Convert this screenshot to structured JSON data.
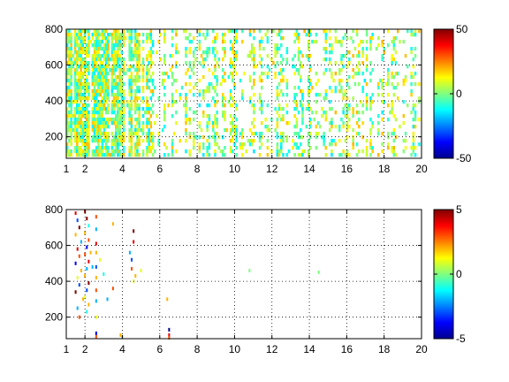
{
  "chart_data": [
    {
      "type": "heatmap",
      "title": "",
      "xlabel": "",
      "ylabel": "",
      "xlim": [
        1,
        20
      ],
      "ylim": [
        80,
        800
      ],
      "grid": true,
      "x_ticks": [
        "1",
        "2",
        "4",
        "6",
        "8",
        "10",
        "12",
        "14",
        "16",
        "18",
        "20"
      ],
      "y_ticks": [
        "200",
        "400",
        "600",
        "800"
      ],
      "colorbar": {
        "ticks": [
          "50",
          "0",
          "-50"
        ],
        "clim": [
          -50,
          50
        ],
        "colormap": "jet"
      },
      "density": [
        [
          1.5,
          0.85
        ],
        [
          2.0,
          0.8
        ],
        [
          2.5,
          0.85
        ],
        [
          3.0,
          0.8
        ],
        [
          3.5,
          0.8
        ],
        [
          4.0,
          0.8
        ],
        [
          4.5,
          0.75
        ],
        [
          5.0,
          0.55
        ],
        [
          6.0,
          0.45
        ],
        [
          7.0,
          0.45
        ],
        [
          8.0,
          0.42
        ],
        [
          9.0,
          0.4
        ],
        [
          10.0,
          0.4
        ],
        [
          12.0,
          0.38
        ],
        [
          14.0,
          0.35
        ],
        [
          16.0,
          0.33
        ],
        [
          18.0,
          0.3
        ],
        [
          20.0,
          0.28
        ]
      ],
      "value_range": [
        -15,
        20
      ]
    },
    {
      "type": "heatmap",
      "title": "",
      "xlabel": "",
      "ylabel": "",
      "xlim": [
        1,
        20
      ],
      "ylim": [
        80,
        800
      ],
      "grid": true,
      "x_ticks": [
        "1",
        "2",
        "4",
        "6",
        "8",
        "10",
        "12",
        "14",
        "16",
        "18",
        "20"
      ],
      "y_ticks": [
        "200",
        "400",
        "600",
        "800"
      ],
      "colorbar": {
        "ticks": [
          "5",
          "0",
          "-5"
        ],
        "clim": [
          -5,
          5
        ],
        "colormap": "jet"
      },
      "points": [
        [
          1.5,
          780,
          4
        ],
        [
          1.6,
          740,
          -3
        ],
        [
          1.7,
          700,
          5
        ],
        [
          1.5,
          660,
          2
        ],
        [
          1.8,
          620,
          -2
        ],
        [
          1.6,
          580,
          4
        ],
        [
          1.7,
          540,
          3
        ],
        [
          1.5,
          500,
          -4
        ],
        [
          1.8,
          460,
          2
        ],
        [
          1.6,
          420,
          1
        ],
        [
          1.7,
          380,
          -3
        ],
        [
          1.5,
          340,
          5
        ],
        [
          1.9,
          300,
          2
        ],
        [
          1.6,
          250,
          -2
        ],
        [
          1.7,
          200,
          3
        ],
        [
          2.0,
          790,
          4
        ],
        [
          2.1,
          750,
          5
        ],
        [
          2.2,
          710,
          -1
        ],
        [
          2.0,
          670,
          2
        ],
        [
          2.2,
          630,
          3
        ],
        [
          2.1,
          590,
          -4
        ],
        [
          2.0,
          550,
          3
        ],
        [
          2.2,
          510,
          4
        ],
        [
          2.1,
          470,
          -2
        ],
        [
          2.0,
          430,
          2
        ],
        [
          2.2,
          390,
          5
        ],
        [
          2.1,
          350,
          -3
        ],
        [
          2.0,
          310,
          1
        ],
        [
          2.2,
          270,
          2
        ],
        [
          2.1,
          230,
          -1
        ],
        [
          2.6,
          760,
          3
        ],
        [
          2.6,
          690,
          -2
        ],
        [
          2.6,
          610,
          4
        ],
        [
          2.6,
          560,
          2
        ],
        [
          2.6,
          480,
          -3
        ],
        [
          2.6,
          420,
          2
        ],
        [
          2.6,
          350,
          3
        ],
        [
          2.6,
          290,
          -2
        ],
        [
          2.6,
          200,
          1
        ],
        [
          2.6,
          110,
          -4
        ],
        [
          2.6,
          90,
          3
        ],
        [
          2.3,
          560,
          2
        ],
        [
          2.4,
          480,
          -2
        ],
        [
          2.8,
          520,
          1
        ],
        [
          3.0,
          440,
          -1
        ],
        [
          3.5,
          720,
          2
        ],
        [
          3.5,
          360,
          3
        ],
        [
          3.2,
          300,
          -2
        ],
        [
          4.6,
          680,
          5
        ],
        [
          4.6,
          620,
          4
        ],
        [
          4.4,
          560,
          -2
        ],
        [
          4.5,
          470,
          3
        ],
        [
          4.7,
          430,
          2
        ],
        [
          4.6,
          400,
          1
        ],
        [
          4.5,
          520,
          -3
        ],
        [
          3.9,
          100,
          2
        ],
        [
          4.0,
          90,
          -1
        ],
        [
          6.5,
          130,
          -5
        ],
        [
          6.5,
          100,
          4
        ],
        [
          6.5,
          85,
          3
        ],
        [
          6.4,
          300,
          2
        ],
        [
          10.8,
          460,
          0
        ],
        [
          14.5,
          450,
          0
        ],
        [
          5.0,
          460,
          1
        ]
      ]
    }
  ]
}
